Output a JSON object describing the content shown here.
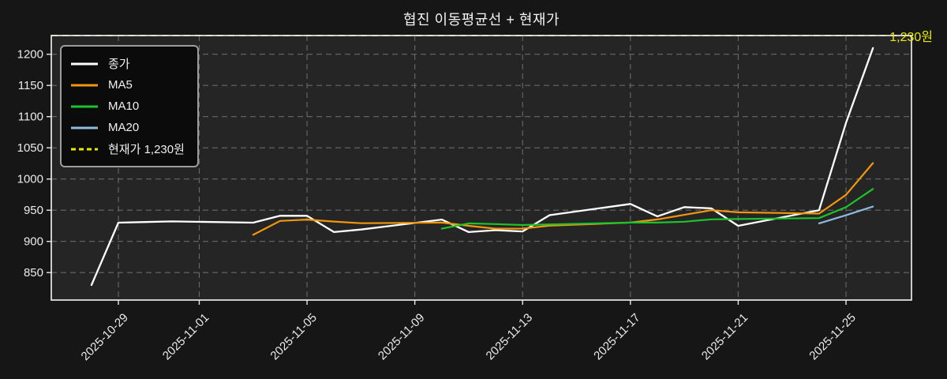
{
  "title": "협진 이동평균선 + 현재가",
  "annotation": {
    "label": "1,230원",
    "color": "#e9e905"
  },
  "colors": {
    "figure_bg": "#161616",
    "axes_bg": "#252525",
    "grid": "#696969",
    "spine": "#e9e9e9",
    "tick_text": "#ebebeb",
    "close": "#ffffff",
    "ma5": "#f0970e",
    "ma10": "#1cc42c",
    "ma20": "#8cbcdd",
    "current_price": "#e9e905"
  },
  "legend": {
    "items": [
      {
        "label": "종가",
        "color": "#ffffff",
        "dash": false
      },
      {
        "label": "MA5",
        "color": "#f0970e",
        "dash": false
      },
      {
        "label": "MA10",
        "color": "#1cc42c",
        "dash": false
      },
      {
        "label": "MA20",
        "color": "#8cbcdd",
        "dash": false
      },
      {
        "label": "현재가 1,230원",
        "color": "#e9e905",
        "dash": true
      }
    ]
  },
  "chart_data": {
    "type": "line",
    "title": "협진 이동평균선 + 현재가",
    "grid": true,
    "legend_position": "upper-left",
    "x_anchor_date": "2025-10-29",
    "xlim_days": [
      -2.49,
      29.43
    ],
    "ylim": [
      806,
      1230
    ],
    "y_ticks": [
      850,
      900,
      950,
      1000,
      1050,
      1100,
      1150,
      1200
    ],
    "x_ticks": [
      "2025-10-29",
      "2025-11-01",
      "2025-11-05",
      "2025-11-09",
      "2025-11-13",
      "2025-11-17",
      "2025-11-21",
      "2025-11-25"
    ],
    "current_price": 1230,
    "series": [
      {
        "name": "종가",
        "color": "#ffffff",
        "width": 2.3,
        "dates": [
          "2025-10-28",
          "2025-10-29",
          "2025-10-30",
          "2025-10-31",
          "2025-11-03",
          "2025-11-04",
          "2025-11-05",
          "2025-11-06",
          "2025-11-07",
          "2025-11-10",
          "2025-11-11",
          "2025-11-12",
          "2025-11-13",
          "2025-11-14",
          "2025-11-17",
          "2025-11-18",
          "2025-11-19",
          "2025-11-20",
          "2025-11-21",
          "2025-11-24",
          "2025-11-25",
          "2025-11-26"
        ],
        "values": [
          830,
          930,
          931,
          932,
          930,
          941,
          941,
          915,
          919,
          935,
          915,
          918,
          916,
          942,
          960,
          940,
          955,
          953,
          925,
          950,
          1090,
          1210
        ]
      },
      {
        "name": "MA5",
        "color": "#f0970e",
        "width": 2.2,
        "dates": [
          "2025-11-03",
          "2025-11-04",
          "2025-11-05",
          "2025-11-06",
          "2025-11-07",
          "2025-11-10",
          "2025-11-11",
          "2025-11-12",
          "2025-11-13",
          "2025-11-14",
          "2025-11-17",
          "2025-11-18",
          "2025-11-19",
          "2025-11-20",
          "2025-11-21",
          "2025-11-24",
          "2025-11-25",
          "2025-11-26"
        ],
        "values": [
          910.6,
          932.8,
          935.0,
          931.8,
          929.2,
          930.2,
          925.0,
          920.4,
          920.6,
          925.2,
          930.2,
          935.2,
          942.6,
          950.0,
          946.6,
          944.6,
          974.6,
          1025.6
        ]
      },
      {
        "name": "MA10",
        "color": "#1cc42c",
        "width": 2.2,
        "dates": [
          "2025-11-10",
          "2025-11-11",
          "2025-11-12",
          "2025-11-13",
          "2025-11-14",
          "2025-11-17",
          "2025-11-18",
          "2025-11-19",
          "2025-11-20",
          "2025-11-21",
          "2025-11-24",
          "2025-11-25",
          "2025-11-26"
        ],
        "values": [
          920.4,
          928.9,
          927.7,
          926.2,
          927.2,
          930.2,
          930.1,
          931.5,
          935.3,
          935.9,
          937.4,
          954.9,
          984.1
        ]
      },
      {
        "name": "MA20",
        "color": "#8cbcdd",
        "width": 2.2,
        "dates": [
          "2025-11-24",
          "2025-11-25",
          "2025-11-26"
        ],
        "values": [
          928.9,
          941.9,
          955.9
        ]
      },
      {
        "name": "현재가",
        "type": "hline",
        "value": 1230,
        "color": "#e9e905",
        "width": 1.8,
        "dash": true
      }
    ]
  }
}
